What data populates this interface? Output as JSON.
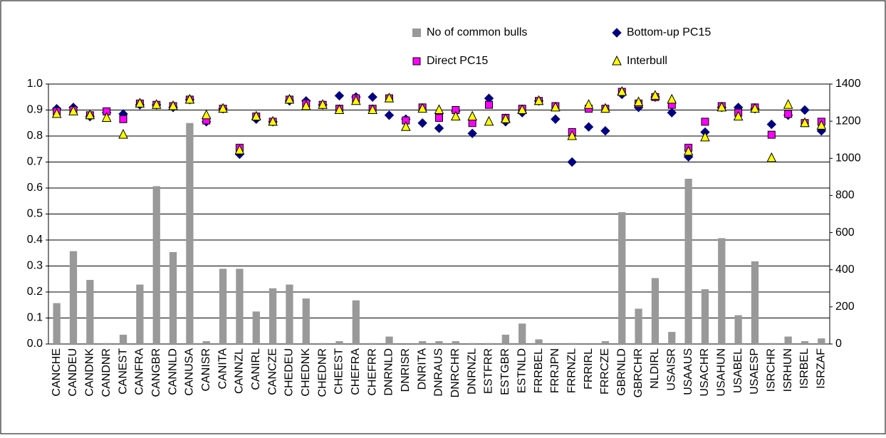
{
  "chart_data": {
    "type": "combo",
    "categories": [
      "CANCHE",
      "CANDEU",
      "CANDNK",
      "CANDNR",
      "CANEST",
      "CANFRA",
      "CANGBR",
      "CANNLD",
      "CANUSA",
      "CANISR",
      "CANITA",
      "CANNZL",
      "CANIRL",
      "CANCZE",
      "CHEDEU",
      "CHEDNK",
      "CHEDNR",
      "CHEEST",
      "CHEFRA",
      "CHEFRR",
      "DNRNLD",
      "DNRISR",
      "DNRITA",
      "DNRAUS",
      "DNRCHR",
      "DNRNZL",
      "ESTFRR",
      "ESTGBR",
      "ESTNLD",
      "FRRBEL",
      "FRRJPN",
      "FRRNZL",
      "FRRIRL",
      "FRRCZE",
      "GBRNLD",
      "GBRCHR",
      "NLDIRL",
      "USAISR",
      "USAAUS",
      "USACHR",
      "USAHUN",
      "USABEL",
      "USAESP",
      "ISRCHR",
      "ISRHUN",
      "ISRBEL",
      "ISRZAF"
    ],
    "series": [
      {
        "name": "No of common bulls",
        "type": "bar",
        "axis": "y2",
        "color": "#999999",
        "values": [
          220,
          500,
          345,
          5,
          50,
          320,
          850,
          495,
          1190,
          15,
          405,
          405,
          175,
          300,
          320,
          245,
          5,
          15,
          235,
          5,
          40,
          0,
          15,
          15,
          15,
          5,
          5,
          50,
          110,
          25,
          0,
          5,
          0,
          15,
          710,
          190,
          355,
          65,
          890,
          295,
          570,
          155,
          445,
          5,
          40,
          15,
          30
        ]
      },
      {
        "name": "Bottom-up PC15",
        "type": "marker",
        "marker": "diamond",
        "color": "#000080",
        "values": [
          0.905,
          0.91,
          0.875,
          0.89,
          0.885,
          0.92,
          0.92,
          0.91,
          0.94,
          0.855,
          0.905,
          0.73,
          0.865,
          0.855,
          0.935,
          0.935,
          0.92,
          0.955,
          0.95,
          0.95,
          0.88,
          0.865,
          0.85,
          0.83,
          0.895,
          0.81,
          0.945,
          0.855,
          0.89,
          0.935,
          0.865,
          0.7,
          0.835,
          0.82,
          0.96,
          0.91,
          0.95,
          0.89,
          0.72,
          0.815,
          0.91,
          0.91,
          0.905,
          0.845,
          0.88,
          0.9,
          0.82
        ]
      },
      {
        "name": "Direct PC15",
        "type": "marker",
        "marker": "square",
        "color": "#ff00ff",
        "values": [
          0.895,
          0.9,
          0.88,
          0.895,
          0.865,
          0.925,
          0.92,
          0.915,
          0.94,
          0.86,
          0.905,
          0.755,
          0.875,
          0.855,
          0.94,
          0.925,
          0.92,
          0.905,
          0.945,
          0.905,
          0.945,
          0.86,
          0.91,
          0.87,
          0.9,
          0.85,
          0.92,
          0.87,
          0.905,
          0.935,
          0.915,
          0.815,
          0.905,
          0.905,
          0.97,
          0.925,
          0.95,
          0.92,
          0.755,
          0.855,
          0.915,
          0.89,
          0.91,
          0.805,
          0.885,
          0.85,
          0.855
        ]
      },
      {
        "name": "Interbull",
        "type": "marker",
        "marker": "triangle",
        "color": "#ffff00",
        "values": [
          0.885,
          0.895,
          0.88,
          0.87,
          0.805,
          0.925,
          0.92,
          0.915,
          0.94,
          0.88,
          0.905,
          0.745,
          0.875,
          0.855,
          0.94,
          0.915,
          0.92,
          0.9,
          0.935,
          0.9,
          0.945,
          0.835,
          0.905,
          0.9,
          0.875,
          0.875,
          0.855,
          0.865,
          0.9,
          0.935,
          0.91,
          0.8,
          0.92,
          0.905,
          0.97,
          0.93,
          0.955,
          0.94,
          0.74,
          0.795,
          0.91,
          0.875,
          0.905,
          0.715,
          0.92,
          0.85,
          0.84
        ]
      }
    ],
    "ylim": [
      0,
      1.0
    ],
    "yticks": [
      {
        "value": 0,
        "label": "0.0"
      },
      0.1,
      0.2,
      0.3,
      0.4,
      0.5,
      0.6,
      0.7,
      0.8,
      0.9,
      {
        "value": 1.0,
        "label": "1.0"
      }
    ],
    "y2lim": [
      0,
      1400
    ],
    "y2ticks": [
      0,
      200,
      400,
      600,
      800,
      1000,
      1200,
      1400
    ],
    "grid": true
  }
}
